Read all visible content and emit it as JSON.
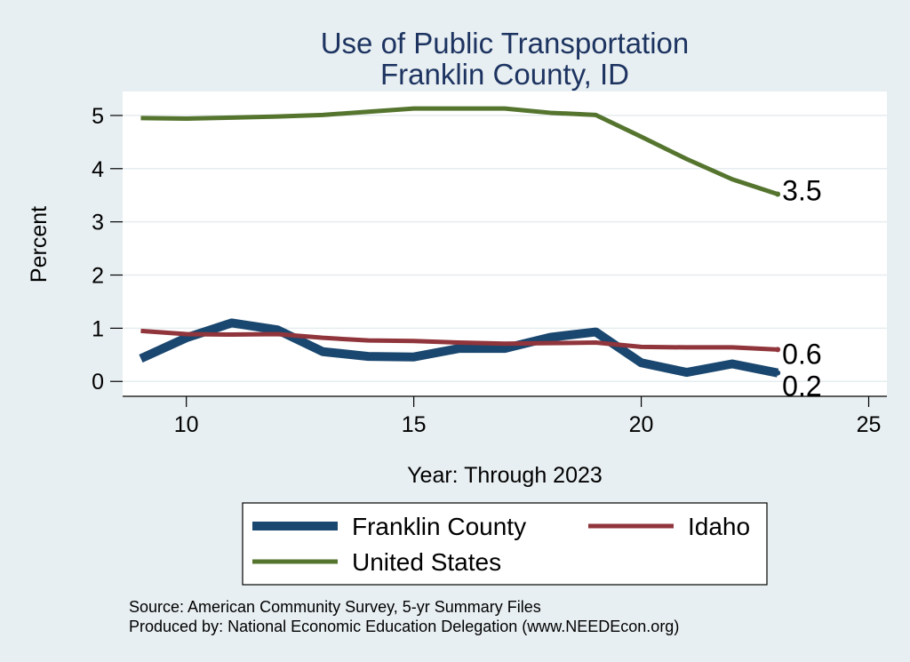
{
  "chart_data": {
    "type": "line",
    "title": [
      "Use of Public Transportation",
      "Franklin County, ID"
    ],
    "xlabel": "Year: Through 2023",
    "ylabel": "Percent",
    "xlim": [
      8.6,
      25.4
    ],
    "ylim": [
      -0.28,
      5.45
    ],
    "xticks": [
      10,
      15,
      20,
      25
    ],
    "yticks": [
      0,
      1,
      2,
      3,
      4,
      5
    ],
    "grid": true,
    "legend_position": "bottom",
    "x": [
      9,
      10,
      11,
      12,
      13,
      14,
      15,
      16,
      17,
      18,
      19,
      20,
      21,
      22,
      23
    ],
    "series": [
      {
        "name": "Franklin County",
        "color": "#1a476f",
        "values": [
          0.43,
          0.82,
          1.1,
          0.97,
          0.56,
          0.47,
          0.46,
          0.62,
          0.62,
          0.83,
          0.93,
          0.35,
          0.17,
          0.33,
          0.16
        ],
        "end_label": "0.2"
      },
      {
        "name": "Idaho",
        "color": "#90353b",
        "values": [
          0.95,
          0.89,
          0.88,
          0.89,
          0.82,
          0.77,
          0.76,
          0.73,
          0.71,
          0.72,
          0.73,
          0.65,
          0.64,
          0.64,
          0.6
        ],
        "end_label": "0.6"
      },
      {
        "name": "United States",
        "color": "#55752f",
        "values": [
          4.95,
          4.94,
          4.96,
          4.98,
          5.01,
          5.07,
          5.13,
          5.13,
          5.13,
          5.05,
          5.01,
          4.6,
          4.18,
          3.8,
          3.52
        ],
        "end_label": "3.5"
      }
    ]
  },
  "source": {
    "line1": "Source: American Community Survey, 5-yr Summary Files",
    "line2": "Produced by: National Economic Education Delegation (www.NEEDEcon.org)"
  }
}
